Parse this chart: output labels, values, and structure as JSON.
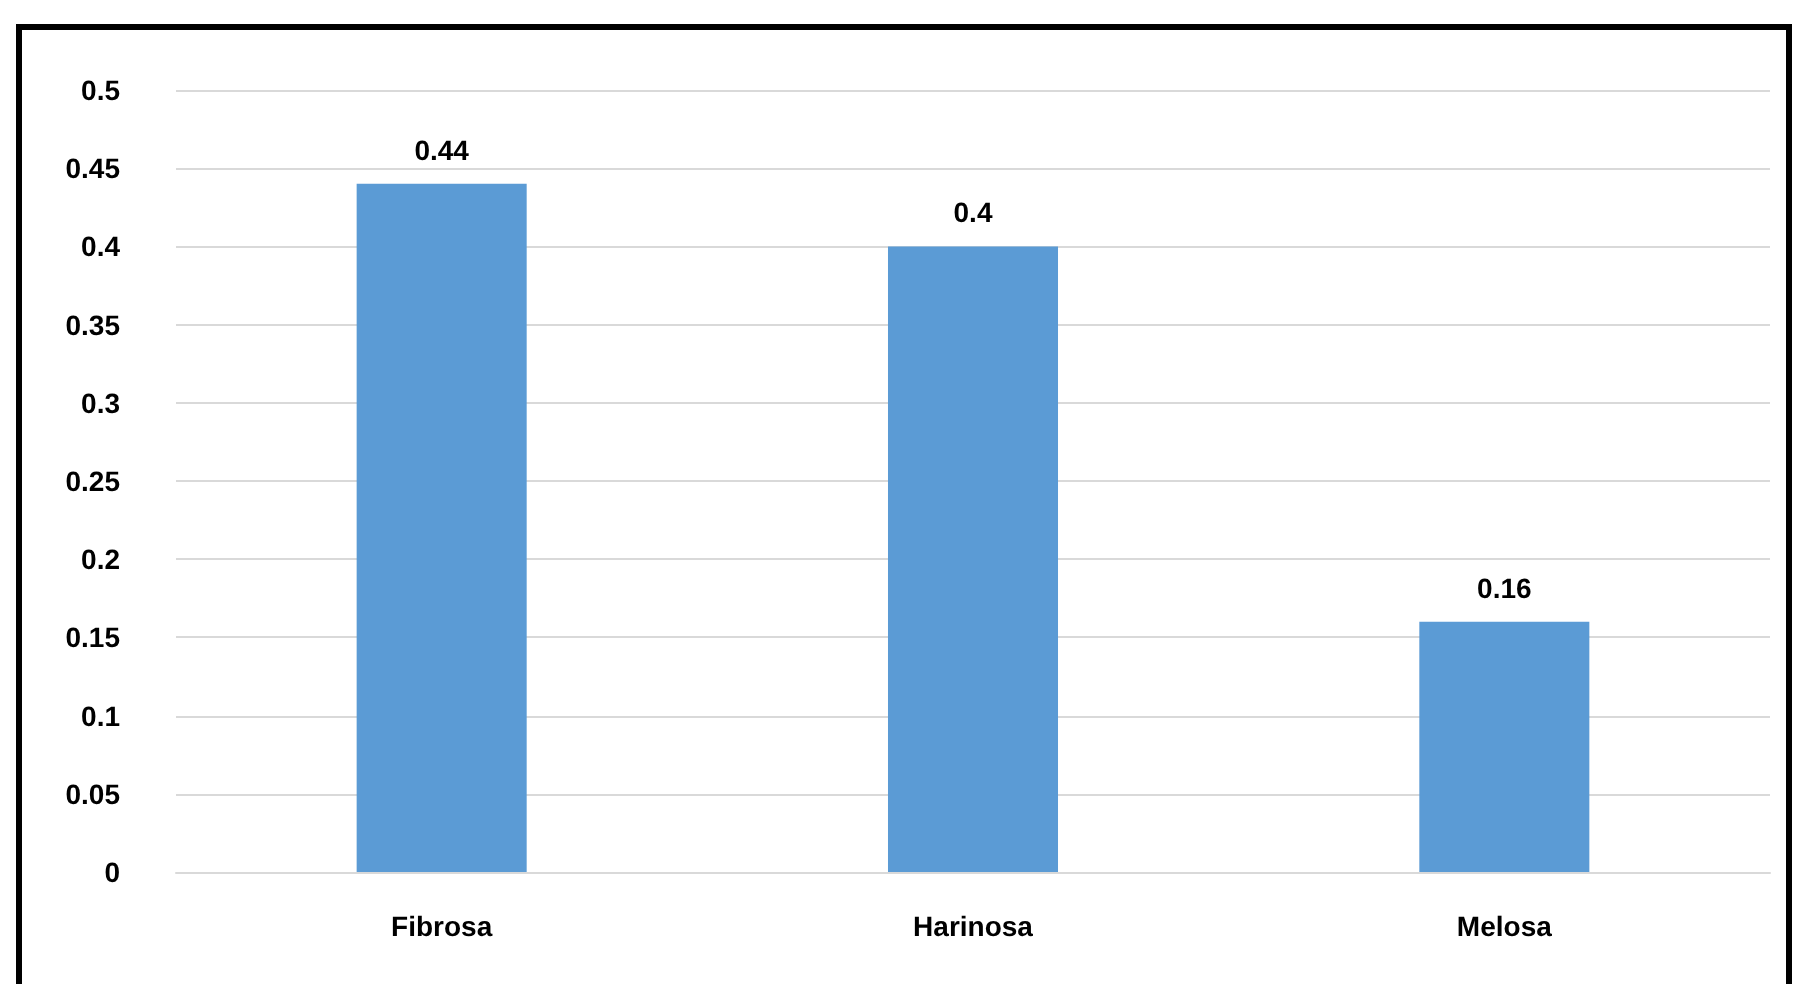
{
  "chart_data": {
    "type": "bar",
    "categories": [
      "Fibrosa",
      "Harinosa",
      "Melosa"
    ],
    "values": [
      0.44,
      0.4,
      0.16
    ],
    "color": "#5b9bd5",
    "ylim": [
      0,
      0.5
    ],
    "yticks": [
      0,
      0.05,
      0.1,
      0.15,
      0.2,
      0.25,
      0.3,
      0.35,
      0.4,
      0.45,
      0.5
    ],
    "grid": "y",
    "data_labels": true
  }
}
